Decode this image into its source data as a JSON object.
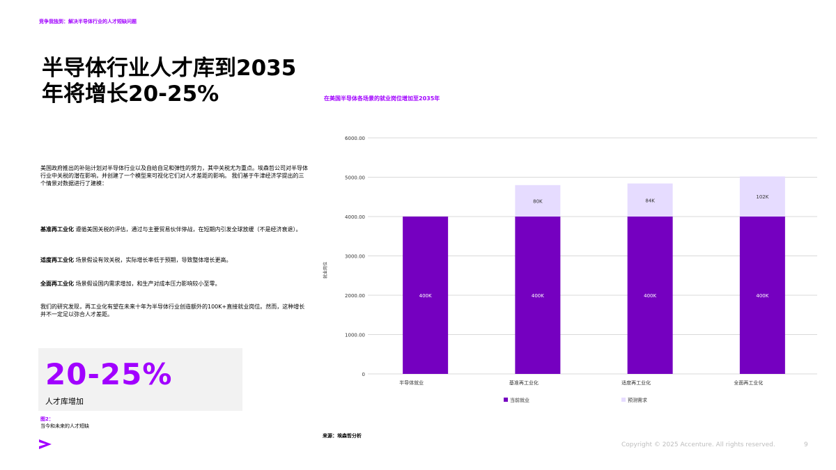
{
  "header": {
    "breadcrumb": "竞争我独到：解决半导体行业的人才短缺问题"
  },
  "title": "半导体行业人才库到2035年将增长20-25%",
  "body": {
    "intro": "美国政府推出的补贴计划对半导体行业以及自给自足和弹性的努力，其中关税尤为重点。埃森哲公司对半导体行业中关税的潜在影响，并创建了一个模型来可视化它们对人才差距的影响。 我们基于牛津经济学提出的三个情景对数据进行了建模：",
    "scenarios": [
      {
        "name": "基准再工业化",
        "text": "遵循美国关税的评估，通过与主要贸易伙伴停战，在短期内引发全球放缓（不是经济衰退）。"
      },
      {
        "name": "适度再工业化",
        "text": "场景假设有效关税，实际增长率低于预期，导致整体增长更高。"
      },
      {
        "name": "全面再工业化",
        "text": "场景假设国内需求增加，和生产对成本压力影响较小至零。"
      }
    ],
    "conclusion": "我们的研究发现，再工业化有望在未来十年为半导体行业创造额外的100K+直接就业岗位。然而，这种增长并不一定足以弥合人才差距。"
  },
  "stat": {
    "value": "20-25%",
    "label": "人才库增加"
  },
  "figure": {
    "label": "图2：",
    "caption": "当今和未来的人才短缺"
  },
  "chart_title": "在美国半导体各场景的就业岗位增加至2035年",
  "source": "来源：埃森哲分析",
  "footer": {
    "copyright": "Copyright © 2025 Accenture. All rights reserved.",
    "page": "9"
  },
  "colors": {
    "accent": "#a100ff",
    "current": "#7500c0",
    "forecast": "#e6dcff"
  },
  "chart_data": {
    "type": "bar",
    "stacked": true,
    "categories": [
      "半导体就业",
      "基准再工业化",
      "适度再工业化",
      "全面再工业化"
    ],
    "series": [
      {
        "name": "当前就业",
        "values": [
          4000,
          4000,
          4000,
          4000
        ],
        "labels": [
          "400K",
          "400K",
          "400K",
          "400K"
        ],
        "color": "#7500c0"
      },
      {
        "name": "预测需求",
        "values": [
          0,
          800,
          840,
          1020
        ],
        "labels": [
          "",
          "80K",
          "84K",
          "102K"
        ],
        "color": "#e6dcff"
      }
    ],
    "ylabel": "就业岗位",
    "ylim": [
      0,
      6000
    ],
    "yticks": [
      "0",
      "1000.00",
      "2000.00",
      "3000.00",
      "4000.00",
      "5000.00",
      "6000.00"
    ],
    "ytick_values": [
      0,
      1000,
      2000,
      3000,
      4000,
      5000,
      6000
    ],
    "grid": true,
    "legend_position": "bottom"
  }
}
